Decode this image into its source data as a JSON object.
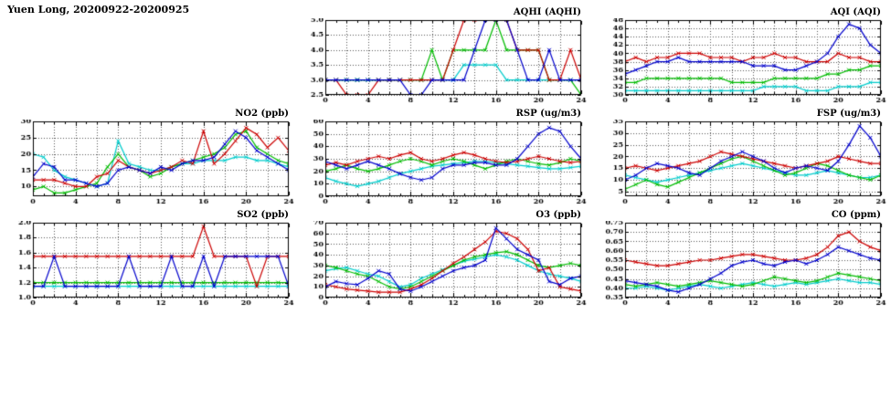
{
  "page_title": "Yuen Long, 20200922-20200925",
  "colors": {
    "blue": "#0000cc",
    "red": "#cc0000",
    "green": "#00bb00",
    "cyan": "#00cccc",
    "grid": "#555555",
    "axis": "#000000"
  },
  "chart_data": [
    {
      "id": "aqhi",
      "type": "line",
      "title": "AQHI (AQHI)",
      "xlim": [
        0,
        24
      ],
      "xtick_major": 4,
      "ylim": [
        2.5,
        5.0
      ],
      "ystep": 0.5,
      "ydecimals": 1,
      "series": [
        {
          "name": "cyan",
          "color": "cyan",
          "values": [
            3,
            3,
            3,
            3,
            3,
            3,
            3,
            3,
            3,
            3,
            3,
            3,
            3,
            3.5,
            3.5,
            3.5,
            3.5,
            3,
            3,
            3,
            3,
            3,
            3,
            3,
            3
          ]
        },
        {
          "name": "green",
          "color": "green",
          "values": [
            3,
            3,
            3,
            3,
            3,
            3,
            3,
            3,
            3,
            3,
            4,
            3,
            4,
            4,
            4,
            4,
            5,
            4,
            4,
            4,
            4,
            3,
            3,
            3,
            2.5
          ]
        },
        {
          "name": "red",
          "color": "red",
          "values": [
            3,
            3,
            2.5,
            2.5,
            2.5,
            3,
            3,
            3,
            3,
            3,
            3,
            3,
            4,
            5,
            5,
            5,
            5,
            5,
            4,
            4,
            4,
            3,
            3,
            4,
            3
          ]
        },
        {
          "name": "blue",
          "color": "blue",
          "values": [
            3,
            3,
            3,
            3,
            3,
            3,
            3,
            3,
            2.5,
            2.5,
            3,
            3,
            3,
            3,
            4,
            5,
            5,
            5,
            4,
            3,
            3,
            4,
            3,
            3,
            3
          ]
        }
      ]
    },
    {
      "id": "aqi",
      "type": "line",
      "title": "AQI (AQI)",
      "xlim": [
        0,
        24
      ],
      "xtick_major": 4,
      "ylim": [
        30,
        48
      ],
      "ystep": 2,
      "ydecimals": 0,
      "series": [
        {
          "name": "cyan",
          "color": "cyan",
          "values": [
            31,
            31,
            31,
            31,
            31,
            31,
            31,
            31,
            31,
            31,
            31,
            31,
            31,
            32,
            32,
            32,
            32,
            31,
            31,
            31,
            32,
            32,
            32,
            33,
            33
          ]
        },
        {
          "name": "green",
          "color": "green",
          "values": [
            33,
            33,
            34,
            34,
            34,
            34,
            34,
            34,
            34,
            34,
            33,
            33,
            33,
            33,
            34,
            34,
            34,
            34,
            34,
            35,
            35,
            36,
            36,
            37,
            37
          ]
        },
        {
          "name": "red",
          "color": "red",
          "values": [
            38,
            39,
            38,
            39,
            39,
            40,
            40,
            40,
            39,
            39,
            39,
            38,
            39,
            39,
            40,
            39,
            39,
            38,
            38,
            38,
            40,
            39,
            39,
            38,
            38
          ]
        },
        {
          "name": "blue",
          "color": "blue",
          "values": [
            35,
            36,
            37,
            38,
            38,
            39,
            38,
            38,
            38,
            38,
            38,
            38,
            37,
            37,
            37,
            36,
            36,
            37,
            38,
            40,
            44,
            47,
            46,
            42,
            40
          ]
        }
      ]
    },
    {
      "id": "no2",
      "type": "line",
      "title": "NO2 (ppb)",
      "xlim": [
        0,
        24
      ],
      "xtick_major": 4,
      "ylim": [
        7,
        30
      ],
      "ystep": 5,
      "ydecimals": 0,
      "series": [
        {
          "name": "cyan",
          "color": "cyan",
          "values": [
            20,
            19,
            15,
            13,
            12,
            11,
            10,
            11,
            24,
            17,
            16,
            15,
            15,
            16,
            17,
            17,
            18,
            18,
            18,
            19,
            19,
            18,
            18,
            17,
            16
          ]
        },
        {
          "name": "green",
          "color": "green",
          "values": [
            9,
            10,
            8,
            8,
            9,
            10,
            11,
            16,
            20,
            16,
            15,
            13,
            14,
            16,
            17,
            18,
            19,
            20,
            22,
            26,
            27,
            22,
            20,
            18,
            17
          ]
        },
        {
          "name": "red",
          "color": "red",
          "values": [
            12,
            12,
            12,
            11,
            10,
            10,
            13,
            14,
            18,
            16,
            15,
            14,
            15,
            16,
            18,
            17,
            27,
            17,
            20,
            24,
            28,
            26,
            22,
            25,
            21
          ]
        },
        {
          "name": "blue",
          "color": "blue",
          "values": [
            13,
            17,
            16,
            12,
            12,
            11,
            10,
            11,
            15,
            16,
            15,
            14,
            16,
            15,
            17,
            18,
            18,
            19,
            23,
            27,
            25,
            21,
            19,
            17,
            15
          ]
        }
      ]
    },
    {
      "id": "rsp",
      "type": "line",
      "title": "RSP (ug/m3)",
      "xlim": [
        0,
        24
      ],
      "xtick_major": 4,
      "ylim": [
        0,
        60
      ],
      "ystep": 10,
      "ydecimals": 0,
      "series": [
        {
          "name": "cyan",
          "color": "cyan",
          "values": [
            15,
            12,
            10,
            8,
            10,
            12,
            15,
            18,
            20,
            22,
            24,
            25,
            26,
            27,
            28,
            28,
            27,
            26,
            25,
            24,
            23,
            22,
            22,
            23,
            24
          ]
        },
        {
          "name": "green",
          "color": "green",
          "values": [
            20,
            22,
            25,
            22,
            20,
            22,
            25,
            28,
            30,
            28,
            25,
            28,
            30,
            28,
            25,
            22,
            25,
            28,
            30,
            28,
            26,
            25,
            27,
            30,
            28
          ]
        },
        {
          "name": "red",
          "color": "red",
          "values": [
            25,
            27,
            25,
            28,
            30,
            32,
            30,
            33,
            35,
            30,
            28,
            30,
            33,
            35,
            33,
            30,
            28,
            27,
            28,
            30,
            32,
            30,
            28,
            27,
            28
          ]
        },
        {
          "name": "blue",
          "color": "blue",
          "values": [
            28,
            25,
            22,
            25,
            28,
            25,
            22,
            18,
            15,
            13,
            15,
            22,
            25,
            25,
            27,
            27,
            25,
            25,
            30,
            40,
            50,
            55,
            52,
            40,
            30
          ]
        }
      ]
    },
    {
      "id": "fsp",
      "type": "line",
      "title": "FSP (ug/m3)",
      "xlim": [
        0,
        24
      ],
      "xtick_major": 4,
      "ylim": [
        3,
        35
      ],
      "ystep": 5,
      "ydecimals": 0,
      "series": [
        {
          "name": "cyan",
          "color": "cyan",
          "values": [
            12,
            11,
            10,
            9,
            10,
            11,
            12,
            13,
            14,
            15,
            16,
            17,
            16,
            15,
            14,
            13,
            12,
            12,
            13,
            14,
            13,
            12,
            11,
            11,
            12
          ]
        },
        {
          "name": "green",
          "color": "green",
          "values": [
            6,
            8,
            10,
            8,
            7,
            9,
            11,
            13,
            15,
            17,
            19,
            20,
            18,
            16,
            14,
            12,
            13,
            15,
            17,
            16,
            14,
            12,
            11,
            10,
            12
          ]
        },
        {
          "name": "red",
          "color": "red",
          "values": [
            15,
            16,
            15,
            14,
            15,
            16,
            17,
            18,
            20,
            22,
            21,
            20,
            19,
            18,
            17,
            16,
            15,
            16,
            17,
            18,
            20,
            19,
            18,
            17,
            17
          ]
        },
        {
          "name": "blue",
          "color": "blue",
          "values": [
            10,
            12,
            15,
            17,
            16,
            15,
            13,
            12,
            15,
            18,
            20,
            22,
            20,
            18,
            15,
            13,
            15,
            16,
            15,
            14,
            18,
            25,
            33,
            28,
            20
          ]
        }
      ]
    },
    {
      "id": "so2",
      "type": "line",
      "title": "SO2 (ppb)",
      "xlim": [
        0,
        24
      ],
      "xtick_major": 4,
      "ylim": [
        1.0,
        2.0
      ],
      "ystep": 0.2,
      "ydecimals": 1,
      "series": [
        {
          "name": "cyan",
          "color": "cyan",
          "values": [
            1.15,
            1.15,
            1.15,
            1.15,
            1.15,
            1.15,
            1.15,
            1.15,
            1.15,
            1.15,
            1.15,
            1.15,
            1.15,
            1.15,
            1.15,
            1.15,
            1.15,
            1.15,
            1.15,
            1.15,
            1.15,
            1.15,
            1.15,
            1.15,
            1.15
          ]
        },
        {
          "name": "green",
          "color": "green",
          "values": [
            1.2,
            1.2,
            1.2,
            1.2,
            1.2,
            1.2,
            1.2,
            1.2,
            1.2,
            1.2,
            1.2,
            1.2,
            1.2,
            1.2,
            1.2,
            1.2,
            1.2,
            1.2,
            1.2,
            1.2,
            1.2,
            1.2,
            1.2,
            1.2,
            1.2
          ]
        },
        {
          "name": "red",
          "color": "red",
          "values": [
            1.55,
            1.55,
            1.55,
            1.55,
            1.55,
            1.55,
            1.55,
            1.55,
            1.55,
            1.55,
            1.55,
            1.55,
            1.55,
            1.55,
            1.55,
            1.55,
            1.95,
            1.55,
            1.55,
            1.55,
            1.55,
            1.15,
            1.55,
            1.55,
            1.55
          ]
        },
        {
          "name": "blue",
          "color": "blue",
          "values": [
            1.15,
            1.15,
            1.55,
            1.15,
            1.15,
            1.15,
            1.15,
            1.15,
            1.15,
            1.55,
            1.15,
            1.15,
            1.15,
            1.55,
            1.15,
            1.15,
            1.55,
            1.15,
            1.55,
            1.55,
            1.55,
            1.55,
            1.55,
            1.55,
            1.15
          ]
        }
      ]
    },
    {
      "id": "o3",
      "type": "line",
      "title": "O3 (ppb)",
      "xlim": [
        0,
        24
      ],
      "xtick_major": 4,
      "ylim": [
        0,
        70
      ],
      "ystep": 10,
      "ydecimals": 0,
      "series": [
        {
          "name": "cyan",
          "color": "cyan",
          "values": [
            25,
            27,
            28,
            25,
            22,
            20,
            15,
            10,
            12,
            18,
            22,
            26,
            30,
            34,
            36,
            38,
            40,
            38,
            35,
            30,
            25,
            22,
            20,
            18,
            15
          ]
        },
        {
          "name": "green",
          "color": "green",
          "values": [
            30,
            28,
            25,
            22,
            20,
            15,
            10,
            8,
            10,
            15,
            20,
            25,
            30,
            35,
            38,
            40,
            42,
            43,
            40,
            35,
            30,
            28,
            30,
            32,
            30
          ]
        },
        {
          "name": "red",
          "color": "red",
          "values": [
            12,
            10,
            8,
            7,
            6,
            5,
            5,
            5,
            8,
            12,
            18,
            25,
            32,
            38,
            45,
            52,
            62,
            60,
            55,
            45,
            25,
            28,
            10,
            8,
            6
          ]
        },
        {
          "name": "blue",
          "color": "blue",
          "values": [
            10,
            15,
            13,
            12,
            18,
            25,
            22,
            8,
            6,
            10,
            15,
            20,
            25,
            28,
            30,
            35,
            65,
            55,
            45,
            40,
            35,
            15,
            12,
            18,
            20
          ]
        }
      ]
    },
    {
      "id": "co",
      "type": "line",
      "title": "CO (ppm)",
      "xlim": [
        0,
        24
      ],
      "xtick_major": 4,
      "ylim": [
        0.35,
        0.75
      ],
      "ystep": 0.05,
      "ydecimals": 2,
      "series": [
        {
          "name": "cyan",
          "color": "cyan",
          "values": [
            0.4,
            0.4,
            0.41,
            0.4,
            0.39,
            0.4,
            0.41,
            0.42,
            0.41,
            0.4,
            0.41,
            0.42,
            0.43,
            0.42,
            0.41,
            0.42,
            0.43,
            0.42,
            0.43,
            0.44,
            0.45,
            0.44,
            0.43,
            0.43,
            0.42
          ]
        },
        {
          "name": "green",
          "color": "green",
          "values": [
            0.42,
            0.41,
            0.42,
            0.43,
            0.42,
            0.41,
            0.42,
            0.43,
            0.44,
            0.43,
            0.42,
            0.41,
            0.42,
            0.44,
            0.46,
            0.45,
            0.44,
            0.43,
            0.44,
            0.46,
            0.48,
            0.47,
            0.46,
            0.45,
            0.44
          ]
        },
        {
          "name": "red",
          "color": "red",
          "values": [
            0.55,
            0.54,
            0.53,
            0.52,
            0.52,
            0.53,
            0.54,
            0.55,
            0.55,
            0.56,
            0.57,
            0.58,
            0.58,
            0.57,
            0.56,
            0.55,
            0.55,
            0.56,
            0.58,
            0.62,
            0.68,
            0.7,
            0.65,
            0.62,
            0.6
          ]
        },
        {
          "name": "blue",
          "color": "blue",
          "values": [
            0.44,
            0.43,
            0.42,
            0.41,
            0.39,
            0.38,
            0.4,
            0.42,
            0.45,
            0.48,
            0.52,
            0.54,
            0.55,
            0.53,
            0.52,
            0.54,
            0.55,
            0.53,
            0.55,
            0.58,
            0.62,
            0.6,
            0.58,
            0.56,
            0.55
          ]
        }
      ]
    }
  ]
}
